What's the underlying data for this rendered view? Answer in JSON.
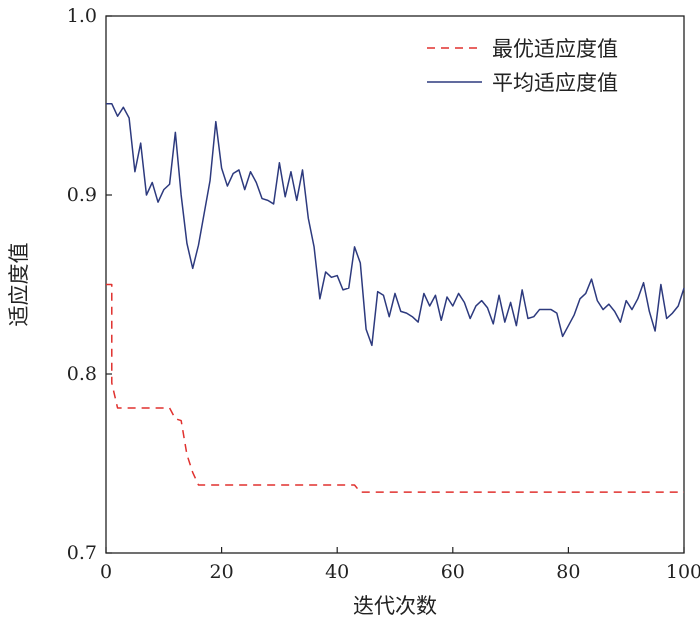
{
  "chart_data": {
    "type": "line",
    "xlabel": "迭代次数",
    "ylabel": "适应度值",
    "xlim": [
      0,
      100
    ],
    "ylim": [
      0.7,
      1.0
    ],
    "xticks": [
      0,
      20,
      40,
      60,
      80,
      100
    ],
    "yticks": [
      0.7,
      0.8,
      0.9,
      1.0
    ],
    "xtick_labels": [
      "0",
      "20",
      "40",
      "60",
      "80",
      "100"
    ],
    "ytick_labels": [
      "0.7",
      "0.8",
      "0.9",
      "1.0"
    ],
    "grid": false,
    "legend_position": "top-right",
    "series": [
      {
        "name": "最优适应度值",
        "style": "dashed",
        "color": "#e0312e",
        "x": [
          0,
          1,
          1,
          2,
          11,
          12,
          13,
          14,
          15,
          16,
          43,
          44,
          100
        ],
        "y": [
          0.85,
          0.85,
          0.795,
          0.781,
          0.781,
          0.775,
          0.774,
          0.755,
          0.745,
          0.738,
          0.738,
          0.734,
          0.734
        ]
      },
      {
        "name": "平均适应度值",
        "style": "solid",
        "color": "#2d3a7e",
        "x": [
          0,
          1,
          2,
          3,
          4,
          5,
          6,
          7,
          8,
          9,
          10,
          11,
          12,
          13,
          14,
          15,
          16,
          17,
          18,
          19,
          20,
          21,
          22,
          23,
          24,
          25,
          26,
          27,
          28,
          29,
          30,
          31,
          32,
          33,
          34,
          35,
          36,
          37,
          38,
          39,
          40,
          41,
          42,
          43,
          44,
          45,
          46,
          47,
          48,
          49,
          50,
          51,
          52,
          53,
          54,
          55,
          56,
          57,
          58,
          59,
          60,
          61,
          62,
          63,
          64,
          65,
          66,
          67,
          68,
          69,
          70,
          71,
          72,
          73,
          74,
          75,
          76,
          77,
          78,
          79,
          80,
          81,
          82,
          83,
          84,
          85,
          86,
          87,
          88,
          89,
          90,
          91,
          92,
          93,
          94,
          95,
          96,
          97,
          98,
          99,
          100
        ],
        "y": [
          0.951,
          0.951,
          0.944,
          0.949,
          0.943,
          0.913,
          0.929,
          0.9,
          0.907,
          0.896,
          0.903,
          0.906,
          0.935,
          0.9,
          0.873,
          0.859,
          0.872,
          0.89,
          0.908,
          0.941,
          0.915,
          0.905,
          0.912,
          0.914,
          0.903,
          0.913,
          0.907,
          0.898,
          0.897,
          0.895,
          0.918,
          0.899,
          0.913,
          0.897,
          0.914,
          0.887,
          0.871,
          0.842,
          0.857,
          0.854,
          0.855,
          0.847,
          0.848,
          0.871,
          0.862,
          0.825,
          0.816,
          0.846,
          0.844,
          0.832,
          0.845,
          0.835,
          0.834,
          0.832,
          0.829,
          0.845,
          0.838,
          0.844,
          0.83,
          0.843,
          0.838,
          0.845,
          0.84,
          0.831,
          0.838,
          0.841,
          0.837,
          0.828,
          0.844,
          0.829,
          0.84,
          0.827,
          0.847,
          0.831,
          0.832,
          0.836,
          0.836,
          0.836,
          0.834,
          0.821,
          0.827,
          0.833,
          0.842,
          0.845,
          0.853,
          0.841,
          0.836,
          0.839,
          0.835,
          0.829,
          0.841,
          0.836,
          0.842,
          0.851,
          0.835,
          0.824,
          0.85,
          0.831,
          0.834,
          0.838,
          0.848
        ]
      }
    ]
  }
}
